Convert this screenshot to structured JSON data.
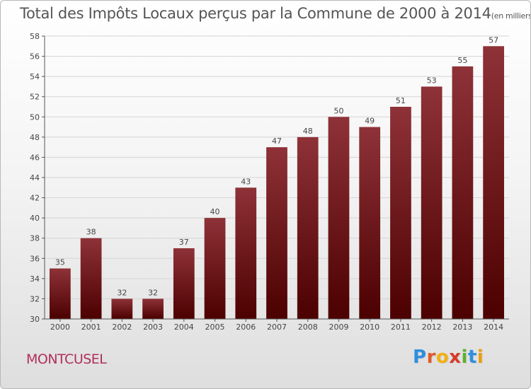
{
  "header": {
    "title": "Total des Impôts Locaux perçus par la Commune de 2000 à 2014",
    "unit": "(en milliers d'€)"
  },
  "footer": {
    "commune": "MONTCUSEL",
    "logo_letters": [
      "P",
      "r",
      "o",
      "x",
      "i",
      "t",
      "i"
    ],
    "logo_colors": [
      "#2f8fdd",
      "#e05a2a",
      "#f2b010",
      "#d63a2a",
      "#5fb02e",
      "#2f8fdd",
      "#e8a010"
    ]
  },
  "colors": {
    "bar_top": "#8e3238",
    "bar_bottom": "#4c0000",
    "axis": "#555555",
    "grid": "#d4d4d4",
    "label": "#444444"
  },
  "chart_data": {
    "type": "bar",
    "title": "Total des Impôts Locaux perçus par la Commune de 2000 à 2014",
    "xlabel": "",
    "ylabel": "en milliers d'€",
    "categories": [
      "2000",
      "2001",
      "2002",
      "2003",
      "2004",
      "2005",
      "2006",
      "2007",
      "2008",
      "2009",
      "2010",
      "2011",
      "2012",
      "2013",
      "2014"
    ],
    "values": [
      35,
      38,
      32,
      32,
      37,
      40,
      43,
      47,
      48,
      50,
      49,
      51,
      53,
      55,
      57
    ],
    "ylim": [
      30,
      58
    ],
    "yticks": [
      30,
      32,
      34,
      36,
      38,
      40,
      42,
      44,
      46,
      48,
      50,
      52,
      54,
      56,
      58
    ],
    "grid": true,
    "data_labels": true
  }
}
